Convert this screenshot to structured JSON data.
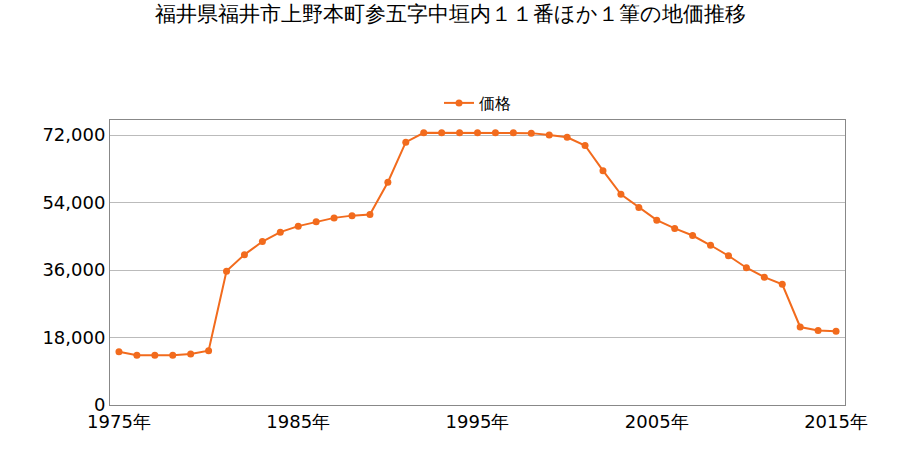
{
  "chart_data": {
    "type": "line",
    "title": "福井県福井市上野本町参五字中垣内１１番ほか１筆の地価推移",
    "x": [
      1975,
      1976,
      1977,
      1978,
      1979,
      1980,
      1981,
      1982,
      1983,
      1984,
      1985,
      1986,
      1987,
      1988,
      1989,
      1990,
      1991,
      1992,
      1993,
      1994,
      1995,
      1996,
      1997,
      1998,
      1999,
      2000,
      2001,
      2002,
      2003,
      2004,
      2005,
      2006,
      2007,
      2008,
      2009,
      2010,
      2011,
      2012,
      2013,
      2014,
      2015
    ],
    "series": [
      {
        "name": "価格",
        "color": "#f26b1d",
        "marker": "circle",
        "line_style": "solid",
        "values": [
          14200,
          13300,
          13300,
          13300,
          13600,
          14500,
          35700,
          40100,
          43600,
          46100,
          47700,
          48900,
          49900,
          50500,
          50800,
          59400,
          70100,
          72600,
          72600,
          72600,
          72600,
          72600,
          72600,
          72500,
          72000,
          71400,
          69200,
          62500,
          56200,
          52700,
          49300,
          47100,
          45200,
          42600,
          39800,
          36600,
          34100,
          32200,
          20800,
          19900,
          19700
        ]
      }
    ],
    "xlim": [
      1974.5,
      2015.5
    ],
    "xticks": [
      {
        "value": 1975,
        "label": "1975年"
      },
      {
        "value": 1985,
        "label": "1985年"
      },
      {
        "value": 1995,
        "label": "1995年"
      },
      {
        "value": 2005,
        "label": "2005年"
      },
      {
        "value": 2015,
        "label": "2015年"
      }
    ],
    "ylim": [
      0,
      76000
    ],
    "yticks": [
      0,
      {
        "value": 18000,
        "label": "18,000"
      },
      {
        "value": 36000,
        "label": "36,000"
      },
      {
        "value": 54000,
        "label": "54,000"
      },
      {
        "value": 72000,
        "label": "72,000"
      }
    ],
    "grid": true,
    "legend": "top"
  }
}
